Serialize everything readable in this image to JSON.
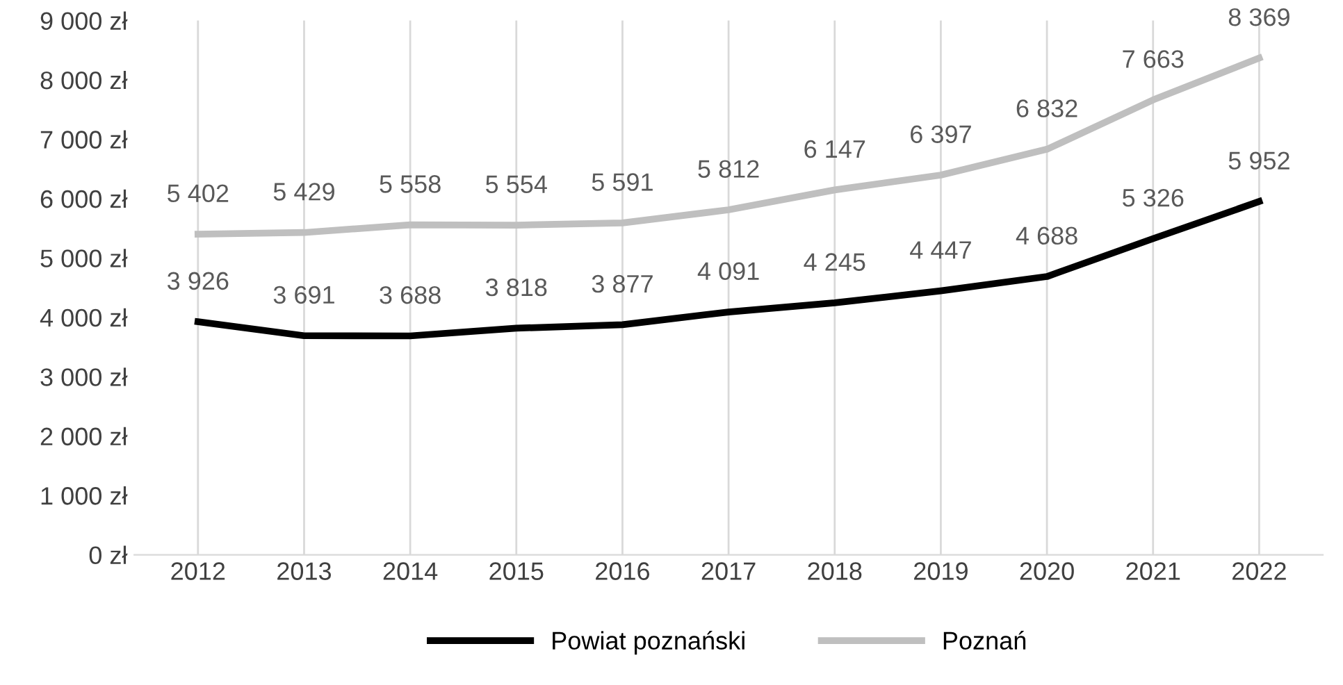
{
  "chart_data": {
    "type": "line",
    "categories": [
      "2012",
      "2013",
      "2014",
      "2015",
      "2016",
      "2017",
      "2018",
      "2019",
      "2020",
      "2021",
      "2022"
    ],
    "series": [
      {
        "name": "Powiat poznański",
        "color": "#000000",
        "values": [
          3926,
          3691,
          3688,
          3818,
          3877,
          4091,
          4245,
          4447,
          4688,
          5326,
          5952
        ],
        "value_labels": [
          "3 926",
          "3 691",
          "3 688",
          "3 818",
          "3 877",
          "4 091",
          "4 245",
          "4 447",
          "4 688",
          "5 326",
          "5 952"
        ]
      },
      {
        "name": "Poznań",
        "color": "#bfbfbf",
        "values": [
          5402,
          5429,
          5558,
          5554,
          5591,
          5812,
          6147,
          6397,
          6832,
          7663,
          8369
        ],
        "value_labels": [
          "5 402",
          "5 429",
          "5 558",
          "5 554",
          "5 591",
          "5 812",
          "6 147",
          "6 397",
          "6 832",
          "7 663",
          "8 369"
        ]
      }
    ],
    "ylim": [
      0,
      9000
    ],
    "yticks": [
      {
        "value": 0,
        "label": "0 zł"
      },
      {
        "value": 1000,
        "label": "1 000 zł"
      },
      {
        "value": 2000,
        "label": "2 000 zł"
      },
      {
        "value": 3000,
        "label": "3 000 zł"
      },
      {
        "value": 4000,
        "label": "4 000 zł"
      },
      {
        "value": 5000,
        "label": "5 000 zł"
      },
      {
        "value": 6000,
        "label": "6 000 zł"
      },
      {
        "value": 7000,
        "label": "7 000 zł"
      },
      {
        "value": 8000,
        "label": "8 000 zł"
      },
      {
        "value": 9000,
        "label": "9 000 zł"
      }
    ],
    "grid": "x",
    "legend": "bottom",
    "marker": "none",
    "line_style": "solid"
  }
}
